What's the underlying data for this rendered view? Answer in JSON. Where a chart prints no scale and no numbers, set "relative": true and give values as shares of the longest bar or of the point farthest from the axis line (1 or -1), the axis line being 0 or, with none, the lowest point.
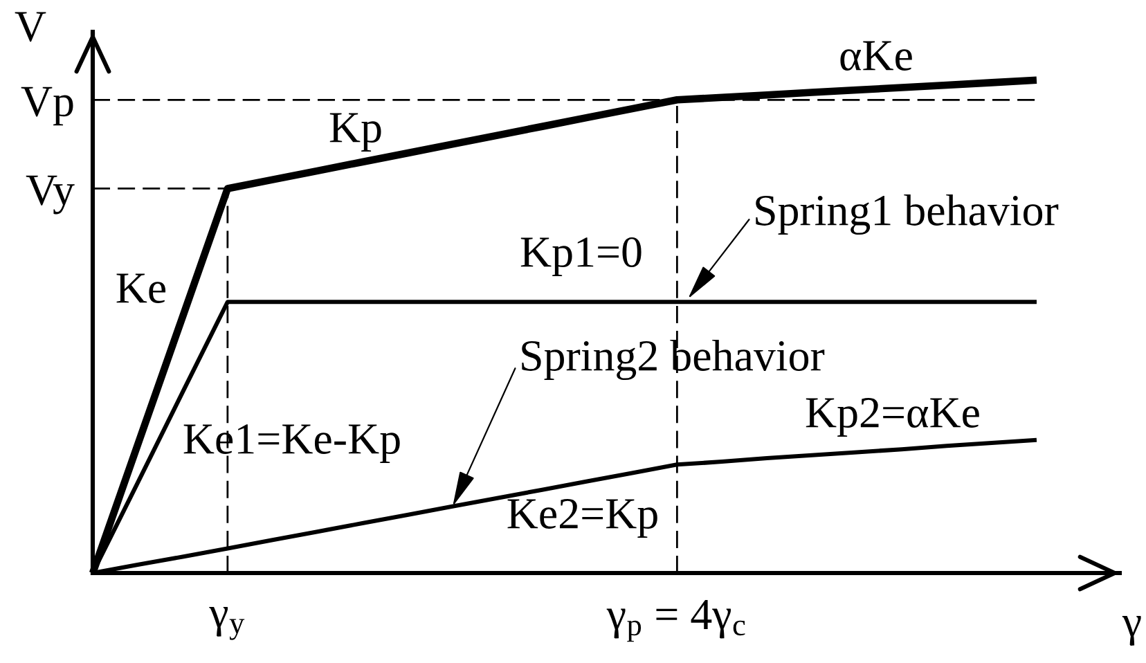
{
  "chart_data": {
    "type": "line",
    "relative": true,
    "xlabel": "γ",
    "ylabel": "V",
    "categories": [
      null,
      null,
      null,
      "γ$_{y}$",
      null,
      null,
      null,
      null,
      null,
      null,
      null,
      null,
      null,
      "γ$_{p}$ = 4γ$_{c}$",
      null,
      null,
      null,
      null,
      null,
      null,
      null,
      null
    ],
    "series": [
      {
        "color": "#000000",
        "values": [
          0,
          0.26,
          0.52,
          0.78,
          0.798,
          0.816,
          0.834,
          0.852,
          0.87,
          0.888,
          0.906,
          0.924,
          0.942,
          0.96,
          0.965,
          0.97,
          0.975,
          0.98,
          0.985,
          0.99,
          0.995,
          1
        ]
      },
      {
        "color": "#000000",
        "values": [
          0,
          0.183,
          0.367,
          0.55,
          0.55,
          0.55,
          0.55,
          0.55,
          0.55,
          0.55,
          0.55,
          0.55,
          0.55,
          0.55,
          0.55,
          0.55,
          0.55,
          0.55,
          0.55,
          0.55,
          0.55,
          0.55
        ]
      },
      {
        "color": "#000000",
        "values": [
          0,
          0.017,
          0.033,
          0.05,
          0.067,
          0.084,
          0.101,
          0.118,
          0.135,
          0.152,
          0.169,
          0.186,
          0.203,
          0.22,
          0.226,
          0.233,
          0.239,
          0.245,
          0.251,
          0.258,
          0.264,
          0.27
        ]
      }
    ],
    "ref_lines": [
      {
        "axis": "y",
        "value": 0.78,
        "label": "Vy",
        "line_style": "dashed",
        "color": "#000000"
      },
      {
        "axis": "y",
        "value": 0.96,
        "label": "Vp",
        "line_style": "dashed",
        "color": "#000000"
      },
      {
        "axis": "x",
        "value": "γ$_{y}$",
        "line_style": "dashed",
        "color": "#000000"
      },
      {
        "axis": "x",
        "value": "γ$_{p}$ = 4γ$_{c}$",
        "line_style": "dashed",
        "color": "#000000"
      }
    ],
    "annotations": [
      "Kp",
      "αKe",
      "Ke",
      "Kp1=0",
      "Spring1 behavior",
      "Ke1=Ke-Kp",
      "Spring2 behavior",
      "Ke2=Kp",
      "Kp2=αKe"
    ]
  }
}
